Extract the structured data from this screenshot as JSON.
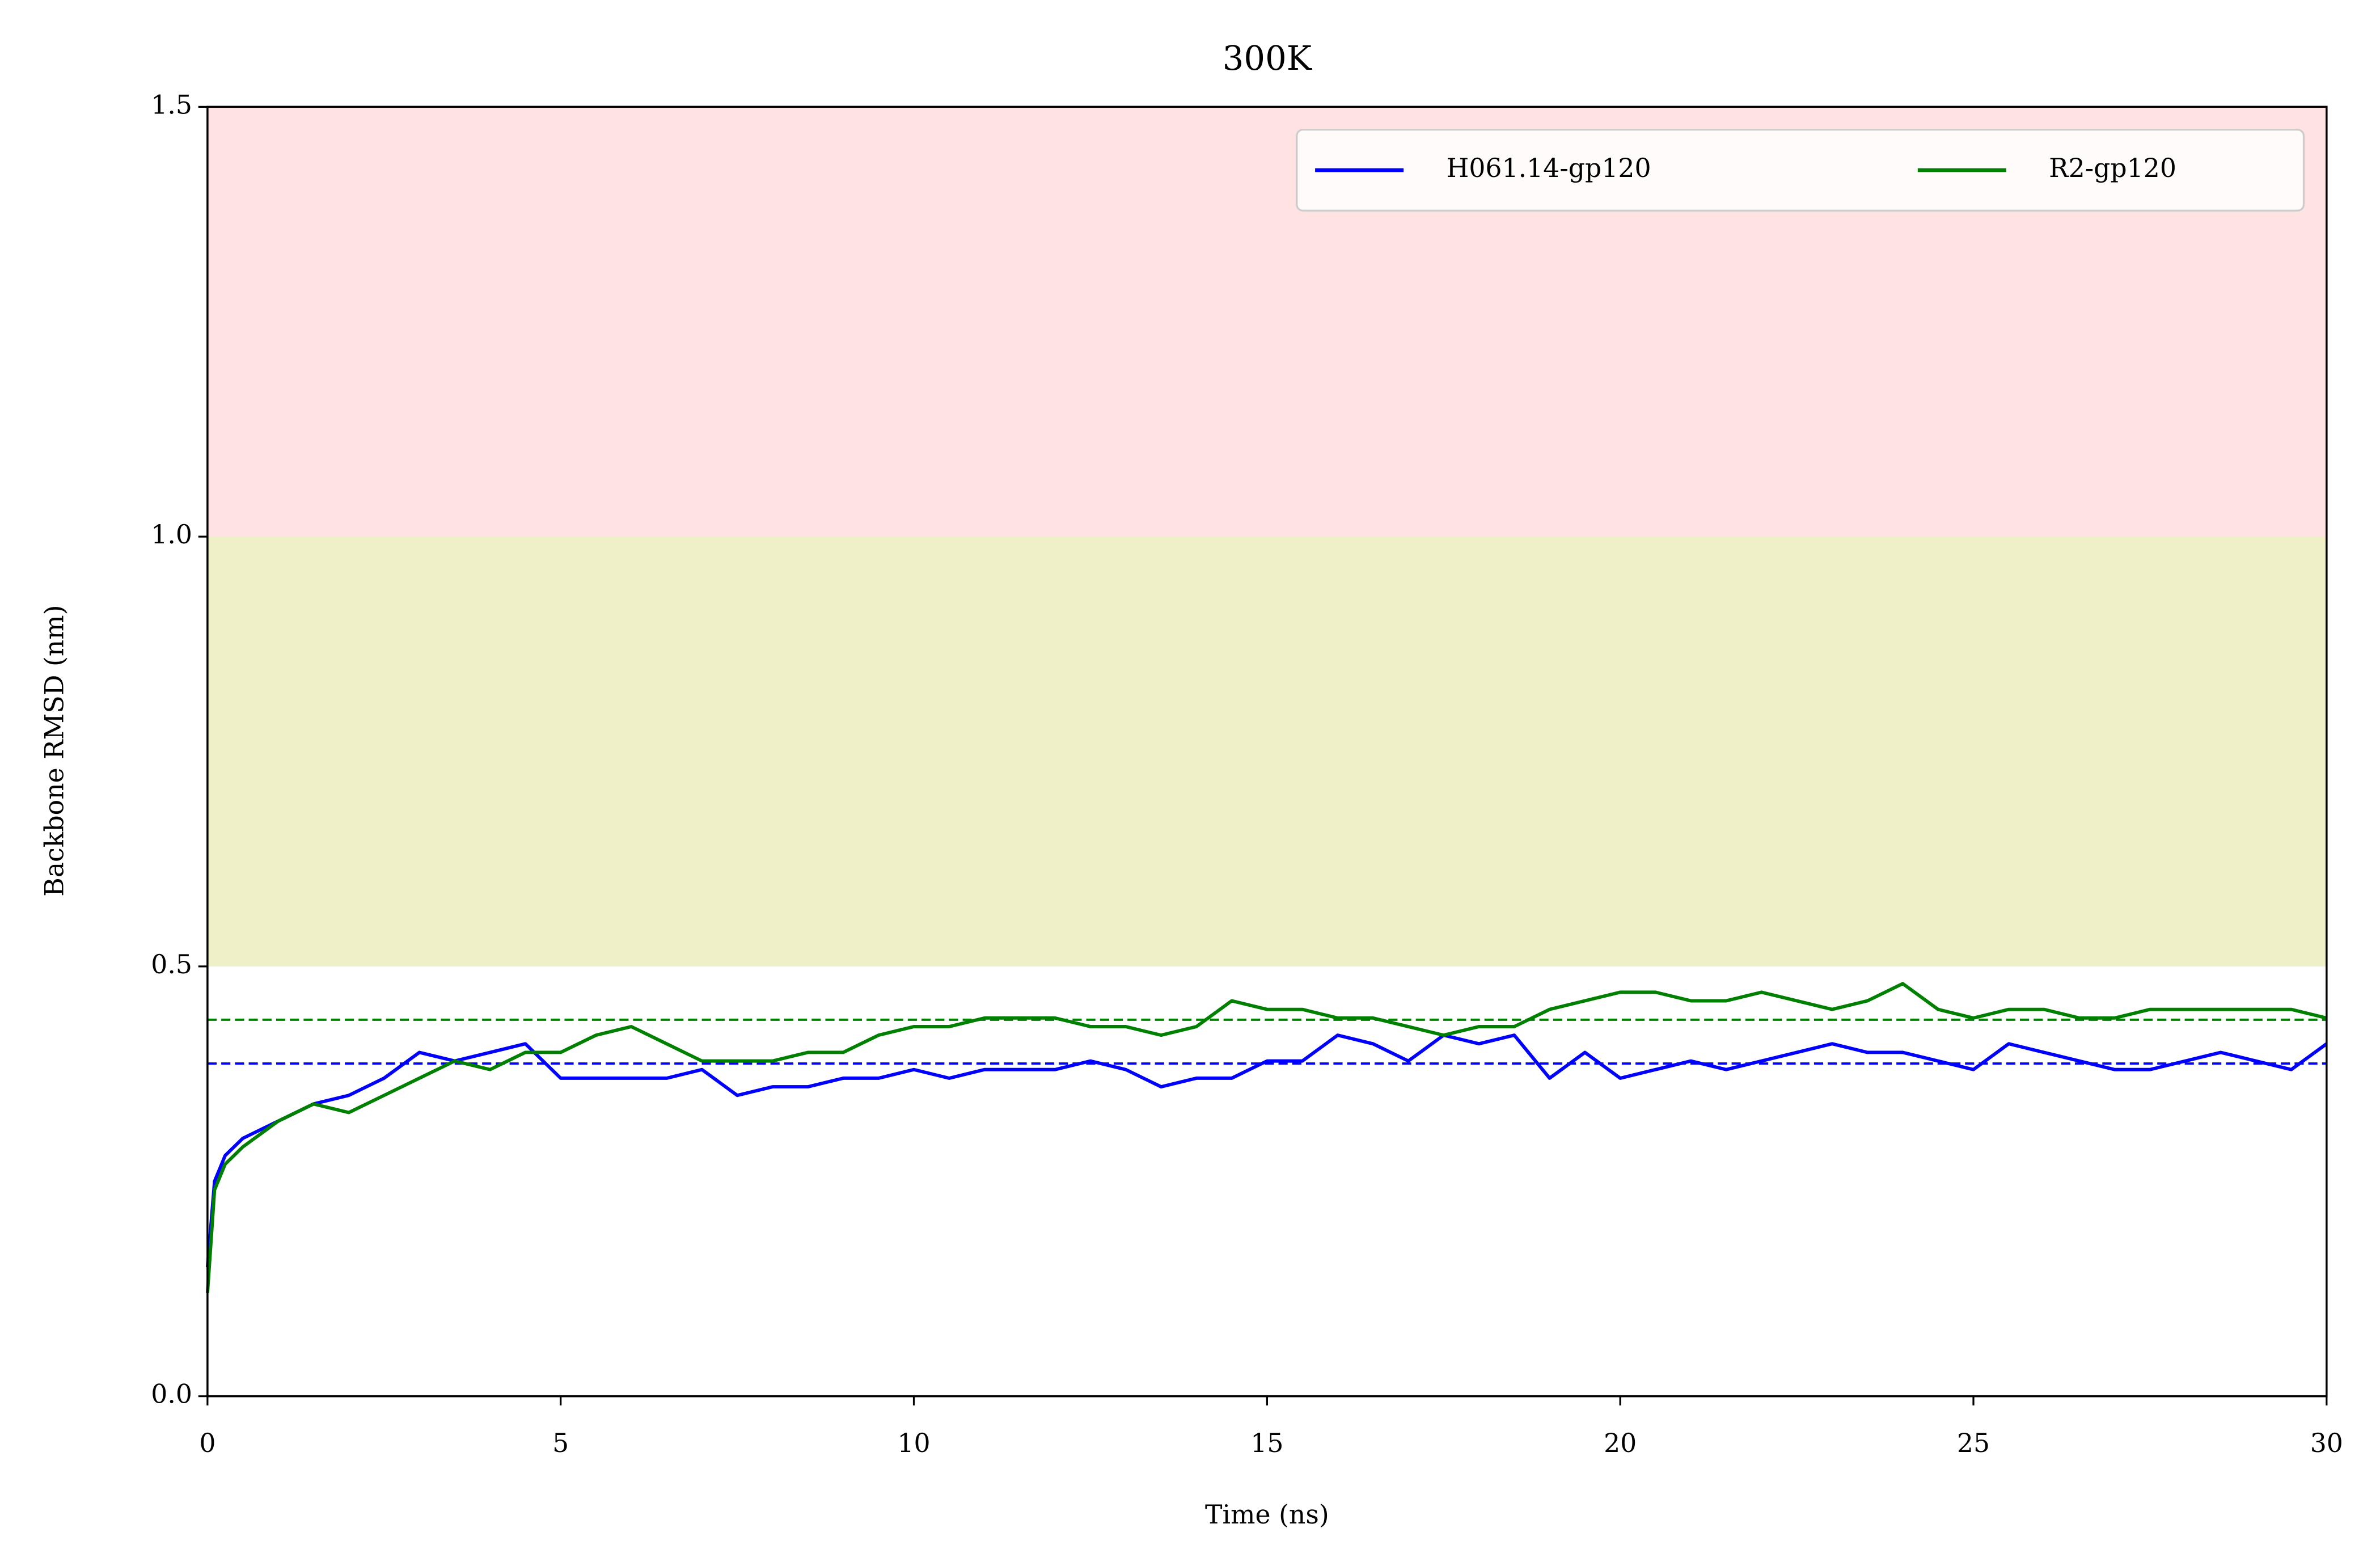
{
  "chart_data": {
    "type": "line",
    "title": "300K",
    "x_label": "Time (ns)",
    "y_label": "Backbone RMSD (nm)",
    "x": [
      0,
      0.1,
      0.25,
      0.5,
      1,
      1.5,
      2,
      2.5,
      3,
      3.5,
      4,
      4.5,
      5,
      5.5,
      6,
      6.5,
      7,
      7.5,
      8,
      8.5,
      9,
      9.5,
      10,
      10.5,
      11,
      11.5,
      12,
      12.5,
      13,
      13.5,
      14,
      14.5,
      15,
      15.5,
      16,
      16.5,
      17,
      17.5,
      18,
      18.5,
      19,
      19.5,
      20,
      20.5,
      21,
      21.5,
      22,
      22.5,
      23,
      23.5,
      24,
      24.5,
      25,
      25.5,
      26,
      26.5,
      27,
      27.5,
      28,
      28.5,
      29,
      29.5,
      30
    ],
    "series": [
      {
        "name": "H061.14-gp120",
        "color": "#0000ff",
        "values": [
          0.15,
          0.25,
          0.28,
          0.3,
          0.32,
          0.34,
          0.35,
          0.37,
          0.4,
          0.39,
          0.4,
          0.41,
          0.37,
          0.37,
          0.37,
          0.37,
          0.38,
          0.35,
          0.36,
          0.36,
          0.37,
          0.37,
          0.38,
          0.37,
          0.38,
          0.38,
          0.38,
          0.39,
          0.38,
          0.36,
          0.37,
          0.37,
          0.39,
          0.39,
          0.42,
          0.41,
          0.39,
          0.42,
          0.41,
          0.42,
          0.37,
          0.4,
          0.37,
          0.38,
          0.39,
          0.38,
          0.39,
          0.4,
          0.41,
          0.4,
          0.4,
          0.39,
          0.38,
          0.41,
          0.4,
          0.39,
          0.38,
          0.38,
          0.39,
          0.4,
          0.39,
          0.38,
          0.41
        ]
      },
      {
        "name": "R2-gp120",
        "color": "#008000",
        "values": [
          0.12,
          0.24,
          0.27,
          0.29,
          0.32,
          0.34,
          0.33,
          0.35,
          0.37,
          0.39,
          0.38,
          0.4,
          0.4,
          0.42,
          0.43,
          0.41,
          0.39,
          0.39,
          0.39,
          0.4,
          0.4,
          0.42,
          0.43,
          0.43,
          0.44,
          0.44,
          0.44,
          0.43,
          0.43,
          0.42,
          0.43,
          0.46,
          0.45,
          0.45,
          0.44,
          0.44,
          0.43,
          0.42,
          0.43,
          0.43,
          0.45,
          0.46,
          0.47,
          0.47,
          0.46,
          0.46,
          0.47,
          0.46,
          0.45,
          0.46,
          0.48,
          0.45,
          0.44,
          0.45,
          0.45,
          0.44,
          0.44,
          0.45,
          0.45,
          0.45,
          0.45,
          0.45,
          0.44
        ]
      }
    ],
    "reference_lines": [
      {
        "value": 0.387,
        "color": "#0000ff"
      },
      {
        "value": 0.438,
        "color": "#008000"
      }
    ],
    "bands": [
      {
        "from": 0.5,
        "to": 1.0,
        "color": "#f0f0c8"
      },
      {
        "from": 1.0,
        "to": 1.5,
        "color": "#ffe2e2"
      }
    ],
    "xlim": [
      0,
      30
    ],
    "xticks": [
      0,
      5,
      10,
      15,
      20,
      25,
      30
    ],
    "ylim": [
      0,
      1.5
    ],
    "yticks": [
      {
        "value": 0,
        "label": "0.0"
      },
      0.5,
      {
        "value": 1,
        "label": "1.0"
      },
      1.5
    ],
    "legend": "upper right"
  }
}
